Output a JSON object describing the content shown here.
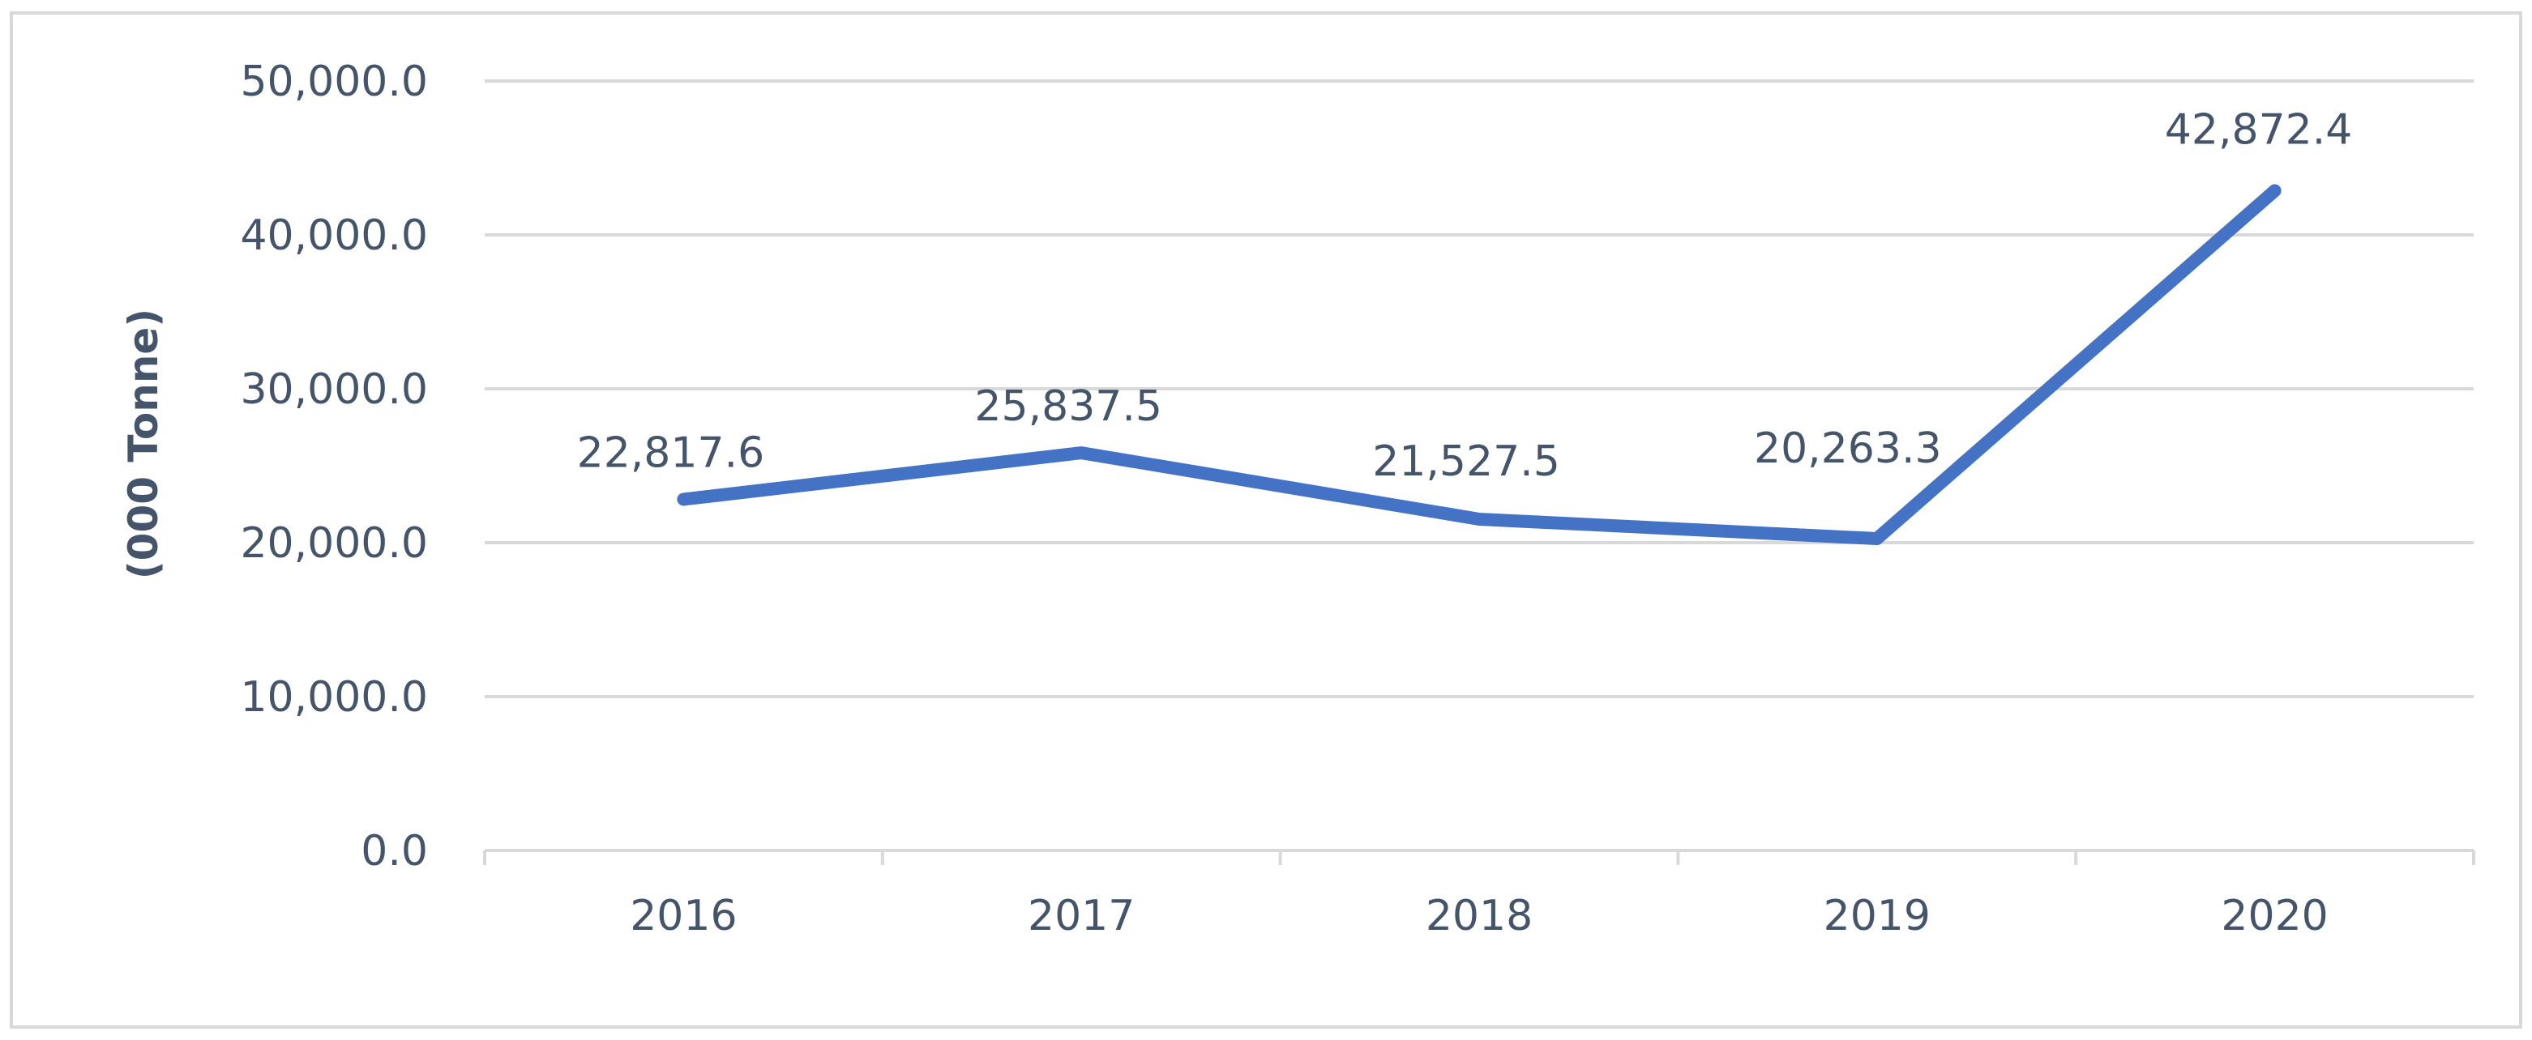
{
  "chart_data": {
    "type": "line",
    "title": "",
    "xlabel": "",
    "ylabel": "(000 Tonne)",
    "categories": [
      "2016",
      "2017",
      "2018",
      "2019",
      "2020"
    ],
    "series": [
      {
        "values": [
          22817.6,
          25837.5,
          21527.5,
          20263.3,
          42872.4
        ]
      }
    ],
    "data_labels": [
      "22,817.6",
      "25,837.5",
      "21,527.5",
      "20,263.3",
      "42,872.4"
    ],
    "yticks": [
      0,
      10000,
      20000,
      30000,
      40000,
      50000
    ],
    "ytick_labels": [
      "0.0",
      "10,000.0",
      "20,000.0",
      "30,000.0",
      "40,000.0",
      "50,000.0"
    ],
    "ylim": [
      0,
      50000
    ],
    "grid": true,
    "legend": "none",
    "colors": {
      "line": "#4472c4",
      "grid": "#d9d9d9",
      "text": "#44546a"
    }
  }
}
